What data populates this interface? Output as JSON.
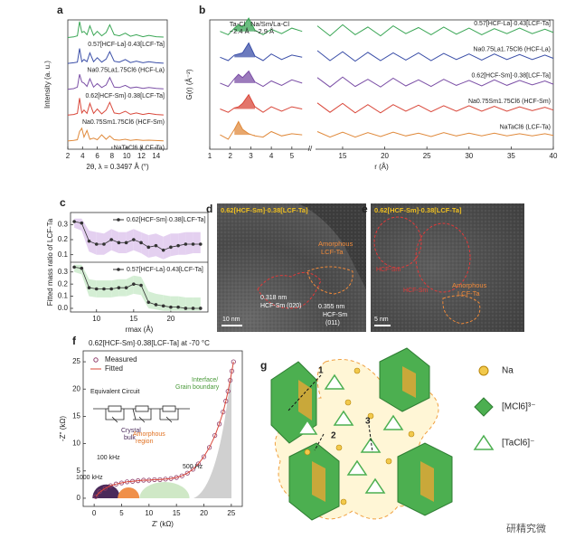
{
  "chart_data": [
    {
      "type": "line",
      "label": "a",
      "offset_traces": true,
      "xlabel": "2θ, λ = 0.3497 Å (°)",
      "ylabel": "Intensity (a. u.)",
      "xlim": [
        2,
        15.5
      ],
      "xticks": [
        2,
        4,
        6,
        8,
        10,
        12,
        14
      ],
      "ylim": [
        0,
        1
      ],
      "x": [
        2,
        2.8,
        3.3,
        3.6,
        3.9,
        4.2,
        4.6,
        5.0,
        5.5,
        6.0,
        6.6,
        7.2,
        7.7,
        8.3,
        9.0,
        9.8,
        10.5,
        11.3,
        12.2,
        13.0,
        14.0,
        15.0
      ],
      "series": [
        {
          "name": "0.57[HCF-La]·0.43[LCF-Ta]",
          "color": "#3aa655",
          "values": [
            0.02,
            0.05,
            0.1,
            0.75,
            0.25,
            0.3,
            0.15,
            0.55,
            0.12,
            0.3,
            0.1,
            0.25,
            0.6,
            0.15,
            0.1,
            0.22,
            0.08,
            0.15,
            0.06,
            0.12,
            0.06,
            0.04
          ]
        },
        {
          "name": "Na0.75La1.75Cl6 (HCF-La)",
          "color": "#3b4fa8",
          "values": [
            0.02,
            0.05,
            0.08,
            0.7,
            0.1,
            0.2,
            0.1,
            0.5,
            0.1,
            0.28,
            0.08,
            0.22,
            0.55,
            0.12,
            0.08,
            0.2,
            0.06,
            0.12,
            0.05,
            0.1,
            0.05,
            0.03
          ]
        },
        {
          "name": "0.62[HCF-Sm]·0.38[LCF-Ta]",
          "color": "#7b4fa6",
          "values": [
            0.02,
            0.05,
            0.12,
            0.7,
            0.35,
            0.3,
            0.15,
            0.5,
            0.12,
            0.28,
            0.1,
            0.22,
            0.55,
            0.12,
            0.1,
            0.2,
            0.08,
            0.12,
            0.06,
            0.1,
            0.06,
            0.04
          ]
        },
        {
          "name": "Na0.75Sm1.75Cl6 (HCF-Sm)",
          "color": "#d9473a",
          "values": [
            0.02,
            0.05,
            0.1,
            0.8,
            0.12,
            0.25,
            0.1,
            0.55,
            0.1,
            0.3,
            0.08,
            0.25,
            0.6,
            0.12,
            0.08,
            0.2,
            0.06,
            0.12,
            0.05,
            0.1,
            0.05,
            0.03
          ]
        },
        {
          "name": "NaTaCl6 (LCF-Ta)",
          "color": "#e08a3c",
          "values": [
            0.02,
            0.05,
            0.08,
            0.45,
            0.6,
            0.2,
            0.5,
            0.1,
            0.15,
            0.08,
            0.3,
            0.1,
            0.25,
            0.08,
            0.06,
            0.1,
            0.05,
            0.08,
            0.05,
            0.06,
            0.04,
            0.03
          ]
        }
      ]
    },
    {
      "type": "line",
      "label": "b",
      "offset_traces": true,
      "xlabel": "r (Å)",
      "ylabel": "G(r) (Å⁻²)",
      "xlim": [
        1,
        40
      ],
      "xbreak": [
        5.8,
        12
      ],
      "xticks": [
        1,
        2,
        3,
        4,
        5,
        15,
        20,
        25,
        30,
        35,
        40
      ],
      "ylim": [
        -0.6,
        1.4
      ],
      "annotations": [
        "Ta-Cl",
        "~2.4 Å",
        "Na/Sm/La-Cl",
        "~2.9 Å"
      ],
      "x": [
        1.5,
        1.9,
        2.2,
        2.4,
        2.6,
        2.9,
        3.2,
        3.6,
        4.0,
        4.5,
        5.0,
        5.5,
        12,
        13.5,
        15,
        16.5,
        18,
        19.5,
        21,
        22.5,
        24,
        25.5,
        27,
        28.5,
        30,
        31.5,
        33,
        34.5,
        36,
        37.5,
        39,
        40
      ],
      "series": [
        {
          "name": "0.57[HCF-La]·0.43[LCF-Ta]",
          "color": "#3aa655",
          "values": [
            0,
            -0.3,
            0.3,
            0.6,
            0.4,
            1.2,
            0.1,
            -0.3,
            0.2,
            -0.2,
            0.3,
            0,
            0.5,
            -0.4,
            0.6,
            -0.3,
            0.4,
            -0.4,
            0.5,
            -0.2,
            0.35,
            -0.3,
            0.4,
            -0.25,
            0.3,
            -0.3,
            0.25,
            -0.2,
            0.3,
            -0.2,
            0.2,
            -0.1
          ]
        },
        {
          "name": "Na0.75La1.75Cl6 (HCF-La)",
          "color": "#3b4fa8",
          "values": [
            0,
            -0.3,
            0.2,
            0.3,
            0.4,
            1.3,
            0.1,
            -0.3,
            0.3,
            -0.2,
            0.2,
            0,
            0.6,
            -0.3,
            0.5,
            -0.35,
            0.45,
            -0.3,
            0.4,
            -0.25,
            0.4,
            -0.3,
            0.35,
            -0.2,
            0.3,
            -0.25,
            0.3,
            -0.2,
            0.25,
            -0.2,
            0.2,
            -0.1
          ]
        },
        {
          "name": "0.62[HCF-Sm]·0.38[LCF-Ta]",
          "color": "#7b4fa6",
          "values": [
            0,
            -0.3,
            0.4,
            0.8,
            0.5,
            1.1,
            0.1,
            -0.3,
            0.2,
            -0.2,
            0.3,
            0,
            0.5,
            -0.35,
            0.55,
            -0.3,
            0.35,
            -0.35,
            0.45,
            -0.25,
            0.3,
            -0.3,
            0.35,
            -0.2,
            0.25,
            -0.25,
            0.3,
            -0.2,
            0.25,
            -0.15,
            0.2,
            -0.1
          ]
        },
        {
          "name": "Na0.75Sm1.75Cl6 (HCF-Sm)",
          "color": "#d9473a",
          "values": [
            0,
            -0.3,
            0.1,
            0.2,
            0.5,
            1.3,
            0.2,
            -0.3,
            0.2,
            -0.2,
            0.2,
            0,
            0.55,
            -0.3,
            0.5,
            -0.35,
            0.4,
            -0.35,
            0.4,
            -0.2,
            0.35,
            -0.25,
            0.3,
            -0.2,
            0.3,
            -0.2,
            0.25,
            -0.2,
            0.2,
            -0.15,
            0.15,
            -0.1
          ]
        },
        {
          "name": "NaTaCl6 (LCF-Ta)",
          "color": "#e08a3c",
          "values": [
            0,
            -0.4,
            0.5,
            1.2,
            0.5,
            0.1,
            -0.1,
            -0.2,
            0.3,
            -0.1,
            0.1,
            0,
            0.3,
            -0.2,
            0.25,
            -0.2,
            0.2,
            -0.15,
            0.25,
            -0.1,
            0.15,
            -0.15,
            0.2,
            -0.1,
            0.15,
            -0.1,
            0.15,
            -0.1,
            0.1,
            -0.1,
            0.1,
            -0.05
          ]
        }
      ]
    },
    {
      "type": "line",
      "label": "c",
      "split_panels": true,
      "xlabel": "rmax (Å)",
      "ylabel": "Fitted mass ratio of LCF-Ta",
      "xlim": [
        6.5,
        25
      ],
      "xticks": [
        10,
        15,
        20
      ],
      "ylim": [
        0.05,
        0.38
      ],
      "yticks": [
        0.1,
        0.2,
        0.3
      ],
      "y2lim": [
        -0.03,
        0.38
      ],
      "y2ticks": [
        {
          "value": 0,
          "label": "0.0"
        },
        0.1,
        0.2,
        0.3
      ],
      "x": [
        7,
        8,
        9,
        10,
        11,
        12,
        13,
        14,
        15,
        16,
        17,
        18,
        19,
        20,
        21,
        22,
        23,
        24
      ],
      "series": [
        {
          "name": "0.62[HCF-Sm]·0.38[LCF-Ta]",
          "color": "#333333",
          "band_color": "#e4d0f0",
          "values": [
            0.32,
            0.31,
            0.19,
            0.17,
            0.17,
            0.2,
            0.18,
            0.18,
            0.2,
            0.18,
            0.15,
            0.16,
            0.13,
            0.15,
            0.16,
            0.17,
            0.17,
            0.17
          ],
          "lower": [
            0.28,
            0.26,
            0.12,
            0.1,
            0.1,
            0.13,
            0.11,
            0.11,
            0.13,
            0.11,
            0.08,
            0.09,
            0.07,
            0.09,
            0.1,
            0.1,
            0.11,
            0.11
          ],
          "upper": [
            0.34,
            0.34,
            0.26,
            0.25,
            0.24,
            0.27,
            0.25,
            0.25,
            0.27,
            0.25,
            0.23,
            0.24,
            0.22,
            0.24,
            0.24,
            0.25,
            0.25,
            0.25
          ]
        },
        {
          "name": "0.57[HCF-La]·0.43[LCF-Ta]",
          "color": "#333333",
          "band_color": "#d4eed4",
          "axis": "y2",
          "values": [
            0.34,
            0.33,
            0.17,
            0.16,
            0.16,
            0.16,
            0.17,
            0.17,
            0.2,
            0.19,
            0.05,
            0.03,
            0.02,
            0.01,
            0.01,
            0,
            0,
            0
          ],
          "lower": [
            0.3,
            0.28,
            0.1,
            0.09,
            0.09,
            0.09,
            0.1,
            0.1,
            0.12,
            0.11,
            0.0,
            -0.01,
            -0.02,
            -0.02,
            -0.02,
            -0.02,
            -0.02,
            -0.02
          ],
          "upper": [
            0.36,
            0.36,
            0.24,
            0.23,
            0.23,
            0.23,
            0.24,
            0.24,
            0.27,
            0.26,
            0.14,
            0.12,
            0.11,
            0.1,
            0.1,
            0.09,
            0.09,
            0.09
          ]
        }
      ]
    },
    {
      "type": "scatter",
      "label": "f",
      "title": "0.62[HCF-Sm]·0.38[LCF-Ta]  at -70 °C",
      "xlabel": "Z' (kΩ)",
      "ylabel": "-Z'' (kΩ)",
      "xlim": [
        -2,
        27
      ],
      "xticks": [
        0,
        5,
        10,
        15,
        20,
        25
      ],
      "ylim": [
        -1.5,
        27
      ],
      "yticks": [
        0,
        5,
        10,
        15,
        20,
        25
      ],
      "annotations": [
        "Equivalent Circuit",
        "Crystal",
        "bulk",
        "Amorphous",
        "region",
        "Interface/",
        "Grain boundary",
        "100 kHz",
        "1000 kHz",
        "500 Hz"
      ],
      "series": [
        {
          "name": "Measured",
          "color": "#8e3b6a",
          "style": "markers",
          "x": [
            0.3,
            1,
            2,
            3,
            4,
            5,
            6,
            7,
            8,
            9,
            10,
            11,
            12,
            13,
            14,
            15,
            16,
            17,
            18,
            19,
            20,
            21,
            22,
            22.8,
            23.5,
            24,
            24.4,
            24.8,
            25.1,
            25.4
          ],
          "values": [
            0.3,
            1.2,
            1.8,
            2.3,
            2.6,
            2.8,
            3.0,
            3.1,
            3.2,
            3.3,
            3.3,
            3.4,
            3.4,
            3.5,
            3.6,
            3.8,
            4.1,
            4.6,
            5.3,
            6.3,
            7.6,
            9.3,
            11.5,
            13.6,
            15.8,
            17.8,
            19.6,
            21.6,
            23.3,
            25.0
          ]
        },
        {
          "name": "Fitted",
          "color": "#d9473a",
          "style": "line",
          "x": [
            0.3,
            1,
            2,
            3,
            4,
            5,
            6,
            7,
            8,
            9,
            10,
            11,
            12,
            13,
            14,
            15,
            16,
            17,
            18,
            19,
            20,
            21,
            22,
            22.8,
            23.5,
            24,
            24.4,
            24.8,
            25.1,
            25.4
          ],
          "values": [
            0.3,
            1.1,
            1.8,
            2.3,
            2.6,
            2.8,
            3.0,
            3.1,
            3.2,
            3.3,
            3.3,
            3.4,
            3.4,
            3.5,
            3.6,
            3.8,
            4.1,
            4.6,
            5.3,
            6.3,
            7.6,
            9.3,
            11.4,
            13.6,
            15.8,
            17.8,
            19.6,
            21.6,
            23.3,
            25.0
          ]
        }
      ]
    }
  ],
  "tem": {
    "d": {
      "label": "d",
      "title": "0.62[HCF-Sm]·0.38[LCF-Ta]",
      "amorphous": [
        "Amorphous",
        "LCF-Ta"
      ],
      "fringe1": [
        "0.318 nm",
        "HCF-Sm (020)"
      ],
      "fringe2": [
        "0.355 nm",
        "HCF-Sm",
        "(011)"
      ],
      "scale": "10 nm"
    },
    "e": {
      "label": "e",
      "title": "0.62[HCF-Sm]·0.38[LCF-Ta]",
      "grains": [
        "HCF-Sm",
        "HCF-Sm"
      ],
      "amorphous": [
        "Amorphous",
        "LCF-Ta"
      ],
      "scale": "5 nm"
    }
  },
  "diagram": {
    "label": "g",
    "steps": [
      "1",
      "2",
      "3"
    ],
    "legend": [
      "Na",
      "[MCl6]³⁻",
      "[TaCl6]⁻"
    ]
  },
  "watermark": "研精究微"
}
